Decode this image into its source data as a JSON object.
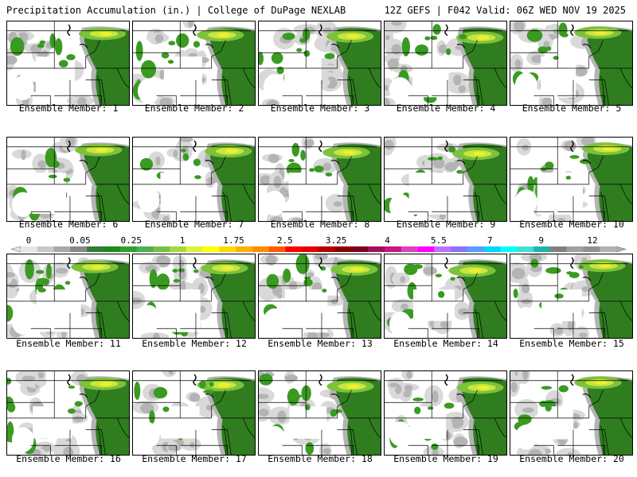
{
  "header": {
    "left_title": "Precipitation Accumulation (in.) | College of DuPage NEXLAB",
    "right_title": "12Z GEFS | F042 Valid: 06Z WED NOV 19 2025"
  },
  "members": [
    {
      "label": "Ensemble Member: 1"
    },
    {
      "label": "Ensemble Member: 2"
    },
    {
      "label": "Ensemble Member: 3"
    },
    {
      "label": "Ensemble Member: 4"
    },
    {
      "label": "Ensemble Member: 5"
    },
    {
      "label": "Ensemble Member: 6"
    },
    {
      "label": "Ensemble Member: 7"
    },
    {
      "label": "Ensemble Member: 8"
    },
    {
      "label": "Ensemble Member: 9"
    },
    {
      "label": "Ensemble Member: 10"
    },
    {
      "label": "Ensemble Member: 11"
    },
    {
      "label": "Ensemble Member: 12"
    },
    {
      "label": "Ensemble Member: 13"
    },
    {
      "label": "Ensemble Member: 14"
    },
    {
      "label": "Ensemble Member: 15"
    },
    {
      "label": "Ensemble Member: 16"
    },
    {
      "label": "Ensemble Member: 17"
    },
    {
      "label": "Ensemble Member: 18"
    },
    {
      "label": "Ensemble Member: 19"
    },
    {
      "label": "Ensemble Member: 20"
    }
  ],
  "legend": {
    "tick_labels": [
      "0",
      "0.05",
      "0.25",
      "1",
      "1.75",
      "2.5",
      "3.25",
      "4",
      "5.5",
      "7",
      "9",
      "12"
    ],
    "colors": [
      "#e6e6e6",
      "#c8c8c8",
      "#a8a8a8",
      "#888888",
      "#2e7d32",
      "#1b8a1b",
      "#2ca02c",
      "#4caf50",
      "#76c043",
      "#a6d83e",
      "#e0ef3a",
      "#ffff00",
      "#ffd700",
      "#ffb000",
      "#ff8c00",
      "#ff5a00",
      "#ff0000",
      "#e00000",
      "#b30000",
      "#8b0000",
      "#800020",
      "#a0105a",
      "#c71585",
      "#e040c0",
      "#ff00ff",
      "#c070ff",
      "#8a70ff",
      "#5a9bff",
      "#00d5ff",
      "#00ffff",
      "#40e0d0",
      "#20b2aa",
      "#808080",
      "#a0a0a0",
      "#909090",
      "#b0b0b0"
    ]
  },
  "map_colors": {
    "background": "#ffffff",
    "light_gray": "#d9d9d9",
    "mid_gray": "#b4b4b4",
    "dark_gray": "#8c8c8c",
    "dark_green": "#2f7d1f",
    "green": "#3a9a22",
    "light_green": "#7cc23a",
    "yellow_green": "#c8e640",
    "yellow": "#f0f02a",
    "borders": "#000000"
  }
}
